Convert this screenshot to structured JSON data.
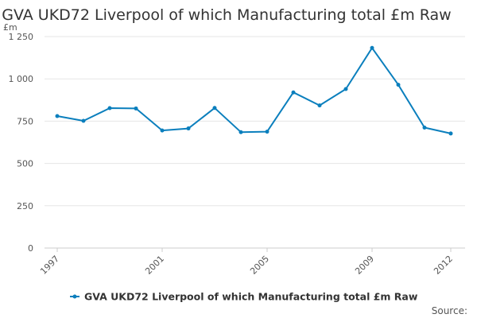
{
  "chart_data": {
    "type": "line",
    "title": "GVA UKD72 Liverpool of which Manufacturing total £m Raw",
    "ylabel": "£m",
    "xlabel": "",
    "ylim": [
      0,
      1250
    ],
    "yticks": [
      0,
      250,
      500,
      750,
      1000,
      1250
    ],
    "ytick_labels": [
      "0",
      "250",
      "500",
      "750",
      "1 000",
      "1 250"
    ],
    "xlim": [
      1997,
      2012
    ],
    "xticks": [
      1997,
      2001,
      2005,
      2009,
      2012
    ],
    "xtick_labels": [
      "1997",
      "2001",
      "2005",
      "2009",
      "2012"
    ],
    "x": [
      1997,
      1998,
      1999,
      2000,
      2001,
      2002,
      2003,
      2004,
      2005,
      2006,
      2007,
      2008,
      2009,
      2010,
      2011,
      2012
    ],
    "series": [
      {
        "name": "GVA UKD72 Liverpool of which Manufacturing total £m Raw",
        "color": "#0b7fbd",
        "values": [
          780,
          752,
          827,
          825,
          695,
          707,
          828,
          685,
          688,
          920,
          843,
          940,
          1183,
          965,
          712,
          677
        ]
      }
    ],
    "grid": true,
    "legend": "bottom",
    "source_label": "Source:"
  }
}
